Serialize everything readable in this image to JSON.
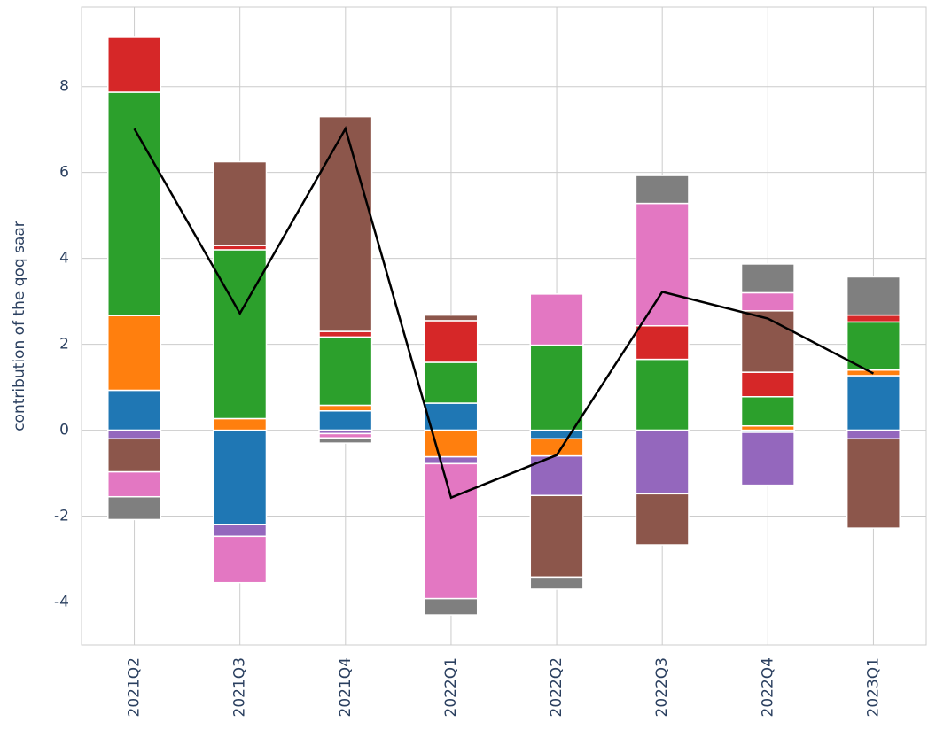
{
  "chart_data": {
    "type": "bar",
    "stacked": true,
    "ylabel": "contribution of the qoq saar",
    "categories": [
      "2021Q2",
      "2021Q3",
      "2021Q4",
      "2022Q1",
      "2022Q2",
      "2022Q3",
      "2022Q4",
      "2023Q1"
    ],
    "series": [
      {
        "color": "#1f77b4",
        "values": [
          0.93,
          -2.2,
          0.45,
          0.63,
          -0.2,
          0,
          -0.05,
          1.27
        ]
      },
      {
        "color": "#ff7f0e",
        "values": [
          1.74,
          0.27,
          0.13,
          -0.62,
          -0.4,
          0,
          0.1,
          0.13
        ]
      },
      {
        "color": "#2ca02c",
        "values": [
          5.2,
          3.93,
          1.59,
          0.95,
          1.98,
          1.65,
          0.68,
          1.12
        ]
      },
      {
        "color": "#d62728",
        "values": [
          1.28,
          0.1,
          0.13,
          0.97,
          0,
          0.78,
          0.57,
          0.16
        ]
      },
      {
        "color": "#9467bd",
        "values": [
          -0.2,
          -0.27,
          -0.08,
          -0.16,
          -0.92,
          -1.48,
          -1.23,
          -0.2
        ]
      },
      {
        "color": "#8c564b",
        "values": [
          -0.77,
          1.95,
          5.0,
          0.13,
          -1.9,
          -1.19,
          1.43,
          -2.08
        ]
      },
      {
        "color": "#e377c2",
        "values": [
          -0.58,
          -1.08,
          -0.1,
          -3.14,
          1.19,
          2.85,
          0.42,
          0
        ]
      },
      {
        "color": "#7f7f7f",
        "values": [
          -0.53,
          0,
          -0.12,
          -0.38,
          -0.28,
          0.65,
          0.67,
          0.89
        ]
      }
    ],
    "line": {
      "color": "#000000",
      "values": [
        7.02,
        2.72,
        7.02,
        -1.57,
        -0.58,
        3.22,
        2.6,
        1.32
      ]
    },
    "ylim": [
      -5.0,
      9.85
    ],
    "yticks": [
      -4,
      -2,
      0,
      2,
      4,
      6,
      8
    ],
    "grid": true
  }
}
